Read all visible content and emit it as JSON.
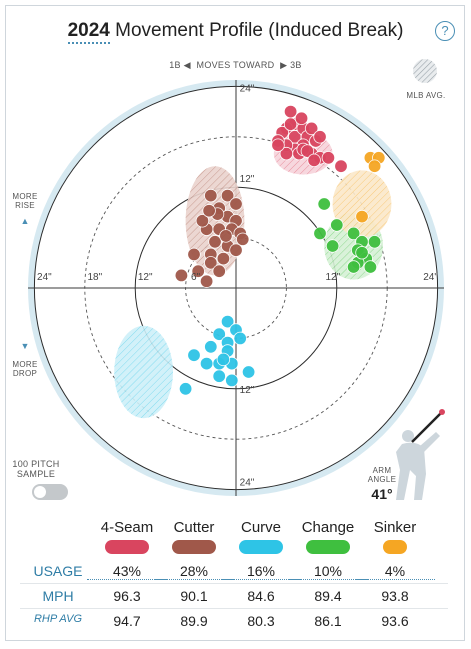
{
  "title": {
    "year": "2024",
    "text": "Movement Profile (Induced Break)"
  },
  "help_symbol": "?",
  "direction": {
    "left": "1B",
    "middle": "MOVES TOWARD",
    "right": "3B"
  },
  "mlb_avg_label": "MLB AVG.",
  "more_rise": "MORE\nRISE",
  "more_drop": "MORE\nDROP",
  "sample_label": "100 PITCH\nSAMPLE",
  "arm_angle": {
    "label": "ARM\nANGLE",
    "value": "41°"
  },
  "axis_labels": {
    "top": [
      "24\"",
      "12\""
    ],
    "bottom": [
      "12\"",
      "24\""
    ],
    "left": [
      "24\"",
      "18\"",
      "12\"",
      "6\""
    ],
    "right": [
      "12\"",
      "24\""
    ]
  },
  "colors": {
    "4-Seam": "#d9455f",
    "Cutter": "#a0584a",
    "Curve": "#2ec4e6",
    "Change": "#3fbf3f",
    "Sinker": "#f5a623",
    "accent": "#2f7da6"
  },
  "table": {
    "row_labels": {
      "usage": "USAGE",
      "mph": "MPH",
      "rhp": "RHP AVG"
    },
    "pitches": [
      {
        "name": "4-Seam",
        "usage": "43%",
        "mph": "96.3",
        "rhp_avg": "94.7"
      },
      {
        "name": "Cutter",
        "usage": "28%",
        "mph": "90.1",
        "rhp_avg": "89.9"
      },
      {
        "name": "Curve",
        "usage": "16%",
        "mph": "84.6",
        "rhp_avg": "80.3"
      },
      {
        "name": "Change",
        "usage": "10%",
        "mph": "89.4",
        "rhp_avg": "86.1"
      },
      {
        "name": "Sinker",
        "usage": "4%",
        "mph": "93.8",
        "rhp_avg": "93.6"
      }
    ]
  },
  "chart_data": {
    "type": "scatter",
    "title": "Movement Profile (Induced Break)",
    "xlabel": "MOVES TOWARD (1B ◀ ▶ 3B)",
    "ylabel": "MORE RISE / MORE DROP",
    "xlim": [
      -28,
      28
    ],
    "ylim": [
      -28,
      28
    ],
    "rings_inches": [
      6,
      12,
      18,
      24
    ],
    "grid": true,
    "series": [
      {
        "name": "4-Seam",
        "color": "#d9455f",
        "avg": {
          "x": 8,
          "y": 16,
          "rx": 3.5,
          "ry": 2.5
        },
        "points": [
          [
            6.5,
            21
          ],
          [
            7,
            19.5
          ],
          [
            6,
            19
          ],
          [
            5.5,
            18.5
          ],
          [
            7,
            18
          ],
          [
            8,
            19
          ],
          [
            8.5,
            18
          ],
          [
            9,
            19
          ],
          [
            9.5,
            17.5
          ],
          [
            10,
            18
          ],
          [
            8,
            17
          ],
          [
            7,
            16.5
          ],
          [
            6,
            17
          ],
          [
            5,
            17.5
          ],
          [
            7.5,
            16
          ],
          [
            9,
            16
          ],
          [
            10,
            15.5
          ],
          [
            11,
            15.5
          ],
          [
            12.5,
            14.5
          ],
          [
            6,
            16
          ],
          [
            8,
            16.5
          ],
          [
            5,
            17
          ],
          [
            6.5,
            19.5
          ],
          [
            7.8,
            20.2
          ],
          [
            8.5,
            16.3
          ],
          [
            9.3,
            15.2
          ]
        ]
      },
      {
        "name": "Cutter",
        "color": "#a0584a",
        "avg": {
          "x": -2.5,
          "y": 8,
          "rx": 3.5,
          "ry": 6.5
        },
        "points": [
          [
            -3,
            11
          ],
          [
            -1,
            11
          ],
          [
            0,
            10
          ],
          [
            -2,
            9.5
          ],
          [
            -1,
            8.5
          ],
          [
            0,
            8
          ],
          [
            -3.5,
            7
          ],
          [
            -2,
            7
          ],
          [
            -0.5,
            7
          ],
          [
            0.5,
            6.5
          ],
          [
            -4,
            8
          ],
          [
            -2.5,
            5.5
          ],
          [
            -1,
            5
          ],
          [
            0,
            4.5
          ],
          [
            -3,
            4
          ],
          [
            -5,
            4
          ],
          [
            -3,
            3
          ],
          [
            -2,
            2
          ],
          [
            -4.5,
            2
          ],
          [
            -1.5,
            3.5
          ],
          [
            -2.2,
            8.8
          ],
          [
            -3.2,
            9.2
          ],
          [
            0.8,
            5.8
          ],
          [
            -1.2,
            6.2
          ],
          [
            -6.5,
            1.5
          ],
          [
            -3.5,
            0.8
          ]
        ]
      },
      {
        "name": "Curve",
        "color": "#2ec4e6",
        "avg": {
          "x": -11,
          "y": -10,
          "rx": 3.5,
          "ry": 5.5
        },
        "points": [
          [
            -1,
            -4
          ],
          [
            0,
            -5
          ],
          [
            -2,
            -5.5
          ],
          [
            -1,
            -6.5
          ],
          [
            0.5,
            -6
          ],
          [
            -3,
            -7
          ],
          [
            -1,
            -7.5
          ],
          [
            -5,
            -8
          ],
          [
            -3.5,
            -9
          ],
          [
            -2,
            -9
          ],
          [
            -0.5,
            -9
          ],
          [
            -2,
            -10.5
          ],
          [
            -0.5,
            -11
          ],
          [
            -6,
            -12
          ],
          [
            1.5,
            -10
          ],
          [
            -1.5,
            -8.5
          ]
        ]
      },
      {
        "name": "Change",
        "color": "#3fbf3f",
        "avg": {
          "x": 14,
          "y": 5,
          "rx": 3.5,
          "ry": 4
        },
        "points": [
          [
            10.5,
            10
          ],
          [
            12,
            7.5
          ],
          [
            10,
            6.5
          ],
          [
            11.5,
            5
          ],
          [
            14,
            6.5
          ],
          [
            15,
            5.5
          ],
          [
            16.5,
            5.5
          ],
          [
            14.5,
            4.5
          ],
          [
            15.5,
            3.5
          ],
          [
            14.5,
            3
          ],
          [
            16,
            2.5
          ],
          [
            14,
            2.5
          ],
          [
            15,
            4.2
          ]
        ]
      },
      {
        "name": "Sinker",
        "color": "#f5a623",
        "avg": {
          "x": 15,
          "y": 10,
          "rx": 3.5,
          "ry": 4
        },
        "points": [
          [
            16,
            15.5
          ],
          [
            17,
            15.5
          ],
          [
            16.5,
            14.5
          ],
          [
            15,
            8.5
          ]
        ]
      }
    ]
  }
}
